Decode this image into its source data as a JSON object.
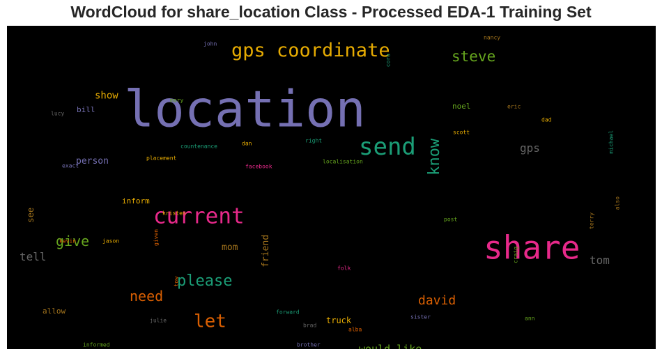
{
  "title": "WordCloud for share_location Class - Processed EDA-1 Training Set",
  "background_color": "#000000",
  "words": [
    {
      "text": "location",
      "color": "#7570b3"
    },
    {
      "text": "share",
      "color": "#e7298a"
    },
    {
      "text": "gps coordinate",
      "color": "#e6ab02"
    },
    {
      "text": "send",
      "color": "#1b9e77"
    },
    {
      "text": "current",
      "color": "#e7298a"
    },
    {
      "text": "know",
      "color": "#1b9e77"
    },
    {
      "text": "steve",
      "color": "#66a61e"
    },
    {
      "text": "please",
      "color": "#1b9e77"
    },
    {
      "text": "let",
      "color": "#d95f02"
    },
    {
      "text": "give",
      "color": "#66a61e"
    },
    {
      "text": "need",
      "color": "#d95f02"
    },
    {
      "text": "david",
      "color": "#d95f02"
    },
    {
      "text": "tell",
      "color": "#666666"
    },
    {
      "text": "tom",
      "color": "#666666"
    },
    {
      "text": "gps",
      "color": "#666666"
    },
    {
      "text": "friend",
      "color": "#a6761d"
    },
    {
      "text": "would like",
      "color": "#66a61e"
    },
    {
      "text": "show",
      "color": "#e6ab02"
    },
    {
      "text": "person",
      "color": "#7570b3"
    },
    {
      "text": "mom",
      "color": "#a6761d"
    },
    {
      "text": "see",
      "color": "#a6761d"
    },
    {
      "text": "inform",
      "color": "#e6ab02"
    },
    {
      "text": "bill",
      "color": "#7570b3"
    },
    {
      "text": "noel",
      "color": "#66a61e"
    },
    {
      "text": "truck",
      "color": "#e6ab02"
    },
    {
      "text": "allow",
      "color": "#a6761d"
    },
    {
      "text": "john",
      "color": "#7570b3"
    },
    {
      "text": "nancy",
      "color": "#a6761d"
    },
    {
      "text": "cora",
      "color": "#1b9e77"
    },
    {
      "text": "mary",
      "color": "#66a61e"
    },
    {
      "text": "lucy",
      "color": "#666666"
    },
    {
      "text": "eric",
      "color": "#a6761d"
    },
    {
      "text": "dad",
      "color": "#e6ab02"
    },
    {
      "text": "scott",
      "color": "#e6ab02"
    },
    {
      "text": "michael",
      "color": "#1b9e77"
    },
    {
      "text": "right",
      "color": "#1b9e77"
    },
    {
      "text": "countenance",
      "color": "#1b9e77"
    },
    {
      "text": "dan",
      "color": "#e6ab02"
    },
    {
      "text": "placement",
      "color": "#e6ab02"
    },
    {
      "text": "exact",
      "color": "#7570b3"
    },
    {
      "text": "facebook",
      "color": "#e7298a"
    },
    {
      "text": "localisation",
      "color": "#66a61e"
    },
    {
      "text": "kristen",
      "color": "#e6ab02"
    },
    {
      "text": "post",
      "color": "#66a61e"
    },
    {
      "text": "terry",
      "color": "#a6761d"
    },
    {
      "text": "also",
      "color": "#a6761d"
    },
    {
      "text": "kevin",
      "color": "#d95f02"
    },
    {
      "text": "jason",
      "color": "#e6ab02"
    },
    {
      "text": "given",
      "color": "#d95f02"
    },
    {
      "text": "craig",
      "color": "#66a61e"
    },
    {
      "text": "folk",
      "color": "#e7298a"
    },
    {
      "text": "tow",
      "color": "#d95f02"
    },
    {
      "text": "forward",
      "color": "#1b9e77"
    },
    {
      "text": "julie",
      "color": "#666666"
    },
    {
      "text": "brad",
      "color": "#666666"
    },
    {
      "text": "sister",
      "color": "#7570b3"
    },
    {
      "text": "ann",
      "color": "#66a61e"
    },
    {
      "text": "alba",
      "color": "#d95f02"
    },
    {
      "text": "informed",
      "color": "#66a61e"
    },
    {
      "text": "brother",
      "color": "#7570b3"
    }
  ]
}
